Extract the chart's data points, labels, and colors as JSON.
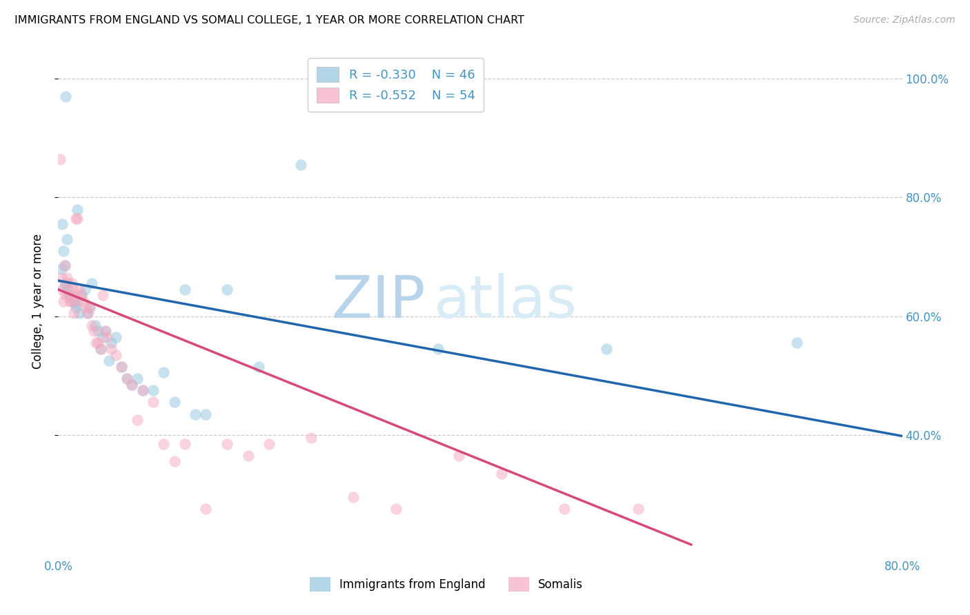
{
  "title": "IMMIGRANTS FROM ENGLAND VS SOMALI COLLEGE, 1 YEAR OR MORE CORRELATION CHART",
  "source": "Source: ZipAtlas.com",
  "ylabel": "College, 1 year or more",
  "xlim": [
    0.0,
    0.8
  ],
  "ylim": [
    0.2,
    1.05
  ],
  "ytick_positions": [
    0.4,
    0.6,
    0.8,
    1.0
  ],
  "ytick_labels": [
    "40.0%",
    "60.0%",
    "80.0%",
    "100.0%"
  ],
  "xtick_positions": [
    0.0,
    0.1,
    0.2,
    0.3,
    0.4,
    0.5,
    0.6,
    0.7,
    0.8
  ],
  "xtick_labels": [
    "0.0%",
    "",
    "",
    "",
    "",
    "",
    "",
    "",
    "80.0%"
  ],
  "legend_r1": "R = -0.330",
  "legend_n1": "N = 46",
  "legend_r2": "R = -0.552",
  "legend_n2": "N = 54",
  "legend_label1": "Immigrants from England",
  "legend_label2": "Somalis",
  "blue_color": "#92c5de",
  "pink_color": "#f4a9be",
  "blue_line_color": "#2166ac",
  "pink_line_color": "#d6497a",
  "tick_color": "#4393c3",
  "blue_x": [
    0.007,
    0.018,
    0.004,
    0.008,
    0.005,
    0.003,
    0.006,
    0.006,
    0.007,
    0.009,
    0.01,
    0.012,
    0.015,
    0.016,
    0.017,
    0.02,
    0.022,
    0.025,
    0.028,
    0.03,
    0.032,
    0.035,
    0.038,
    0.04,
    0.042,
    0.045,
    0.048,
    0.05,
    0.055,
    0.06,
    0.065,
    0.07,
    0.075,
    0.08,
    0.09,
    0.1,
    0.11,
    0.12,
    0.13,
    0.14,
    0.16,
    0.19,
    0.23,
    0.36,
    0.52,
    0.7
  ],
  "blue_y": [
    0.97,
    0.78,
    0.755,
    0.73,
    0.71,
    0.68,
    0.685,
    0.65,
    0.655,
    0.645,
    0.635,
    0.635,
    0.625,
    0.622,
    0.615,
    0.605,
    0.635,
    0.645,
    0.605,
    0.615,
    0.655,
    0.585,
    0.575,
    0.545,
    0.565,
    0.575,
    0.525,
    0.555,
    0.565,
    0.515,
    0.495,
    0.485,
    0.495,
    0.475,
    0.475,
    0.505,
    0.455,
    0.645,
    0.435,
    0.435,
    0.645,
    0.515,
    0.855,
    0.545,
    0.545,
    0.555
  ],
  "pink_x": [
    0.002,
    0.003,
    0.004,
    0.005,
    0.006,
    0.007,
    0.008,
    0.009,
    0.01,
    0.011,
    0.012,
    0.013,
    0.014,
    0.015,
    0.016,
    0.017,
    0.018,
    0.019,
    0.02,
    0.022,
    0.024,
    0.026,
    0.028,
    0.03,
    0.032,
    0.034,
    0.036,
    0.038,
    0.04,
    0.042,
    0.044,
    0.046,
    0.05,
    0.055,
    0.06,
    0.065,
    0.07,
    0.075,
    0.08,
    0.09,
    0.1,
    0.11,
    0.12,
    0.14,
    0.16,
    0.18,
    0.2,
    0.24,
    0.28,
    0.32,
    0.38,
    0.42,
    0.48,
    0.55
  ],
  "pink_y": [
    0.865,
    0.665,
    0.645,
    0.625,
    0.685,
    0.635,
    0.665,
    0.655,
    0.635,
    0.625,
    0.625,
    0.655,
    0.645,
    0.605,
    0.635,
    0.765,
    0.765,
    0.625,
    0.645,
    0.635,
    0.625,
    0.615,
    0.605,
    0.615,
    0.585,
    0.575,
    0.555,
    0.555,
    0.545,
    0.635,
    0.575,
    0.565,
    0.545,
    0.535,
    0.515,
    0.495,
    0.485,
    0.425,
    0.475,
    0.455,
    0.385,
    0.355,
    0.385,
    0.275,
    0.385,
    0.365,
    0.385,
    0.395,
    0.295,
    0.275,
    0.365,
    0.335,
    0.275,
    0.275
  ],
  "blue_trend_x": [
    0.0,
    0.8
  ],
  "blue_trend_y": [
    0.66,
    0.398
  ],
  "pink_trend_x": [
    0.0,
    0.6
  ],
  "pink_trend_y": [
    0.645,
    0.215
  ]
}
